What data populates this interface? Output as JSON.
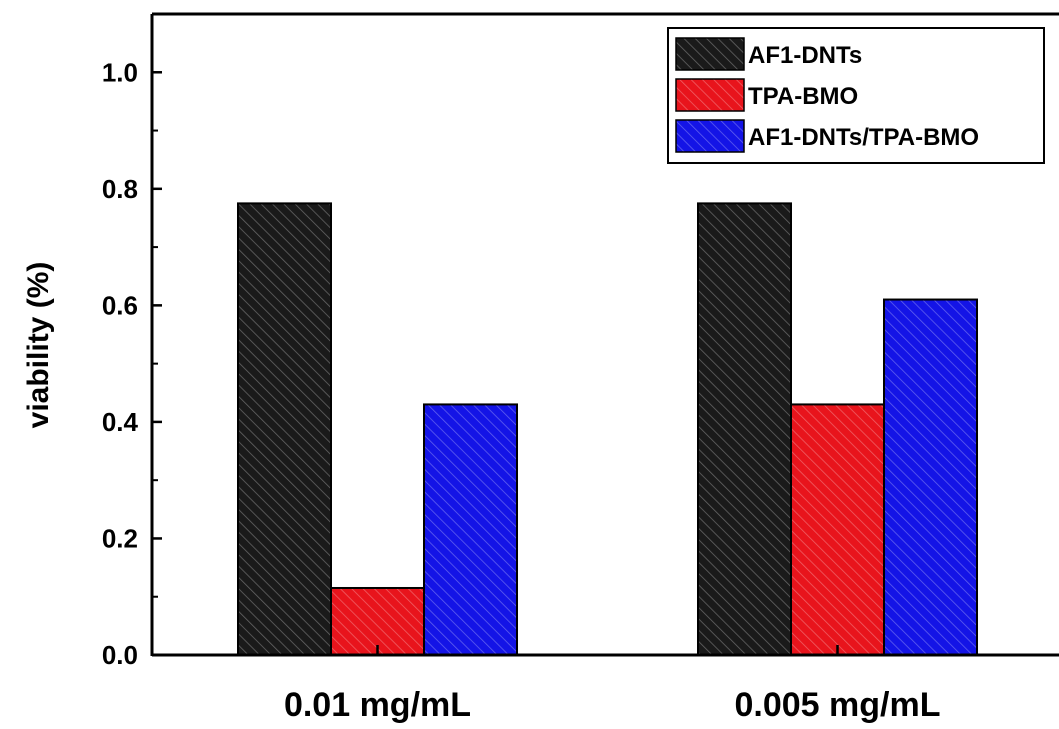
{
  "chart_data": {
    "type": "bar",
    "title": "",
    "xlabel": "",
    "ylabel": "viability (%)",
    "categories": [
      "0.01 mg/mL",
      "0.005 mg/mL"
    ],
    "series": [
      {
        "name": "AF1-DNTs",
        "values": [
          0.775,
          0.775
        ],
        "color": "#1a1a1a"
      },
      {
        "name": "TPA-BMO",
        "values": [
          0.115,
          0.43
        ],
        "color": "#e8141c"
      },
      {
        "name": "AF1-DNTs/TPA-BMO",
        "values": [
          0.43,
          0.61
        ],
        "color": "#1414e6"
      }
    ],
    "ylim": [
      0,
      1.1
    ],
    "yticks": [
      "0.0",
      "0.2",
      "0.4",
      "0.6",
      "0.8",
      "1.0"
    ],
    "grid": false,
    "legend_position": "top-right",
    "bar_fill": "diagonal-hatch"
  }
}
